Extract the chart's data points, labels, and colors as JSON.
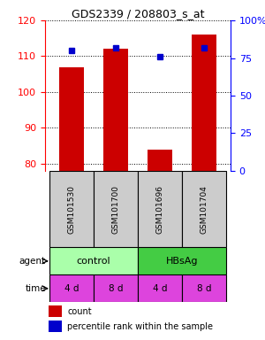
{
  "title": "GDS2339 / 208803_s_at",
  "samples": [
    "GSM101530",
    "GSM101700",
    "GSM101696",
    "GSM101704"
  ],
  "bar_values": [
    107,
    112,
    84,
    116
  ],
  "bar_color": "#cc0000",
  "percentile_values": [
    80,
    82,
    76,
    82
  ],
  "percentile_color": "#0000cc",
  "ylim_left": [
    78,
    120
  ],
  "ylim_right": [
    0,
    100
  ],
  "yticks_left": [
    80,
    90,
    100,
    110,
    120
  ],
  "yticks_right": [
    0,
    25,
    50,
    75,
    100
  ],
  "ytick_labels_right": [
    "0",
    "25",
    "50",
    "75",
    "100%"
  ],
  "agent_labels": [
    "control",
    "HBsAg"
  ],
  "agent_colors": [
    "#aaffaa",
    "#44cc44"
  ],
  "time_labels": [
    "4 d",
    "8 d",
    "4 d",
    "8 d"
  ],
  "time_color": "#dd44dd",
  "sample_box_color": "#cccccc",
  "legend_count_color": "#cc0000",
  "legend_percentile_color": "#0000cc",
  "background_color": "#ffffff",
  "x_positions": [
    0,
    1,
    2,
    3
  ]
}
